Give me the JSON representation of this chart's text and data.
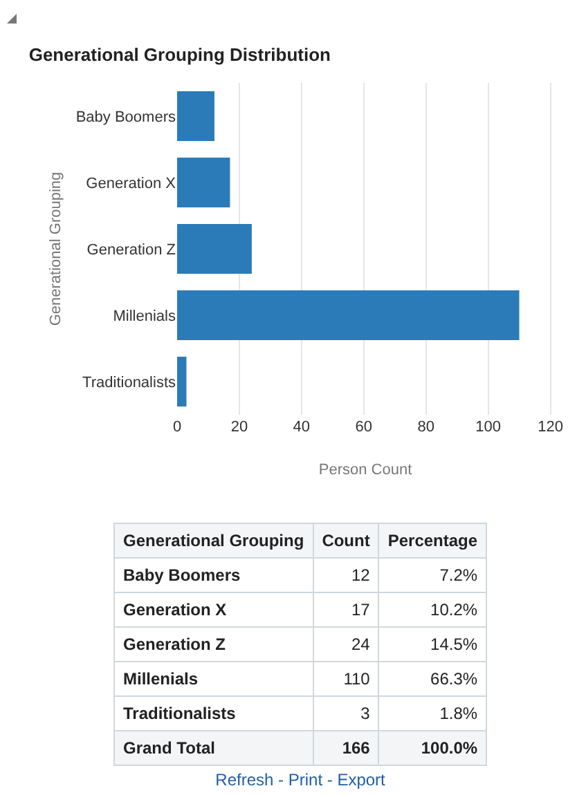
{
  "chart_data": [
    {
      "type": "bar",
      "orientation": "horizontal",
      "title": "Generational Grouping Distribution",
      "xlabel": "Person Count",
      "ylabel": "Generational Grouping",
      "categories": [
        "Baby Boomers",
        "Generation X",
        "Generation Z",
        "Millenials",
        "Traditionalists"
      ],
      "values": [
        12,
        17,
        24,
        110,
        3
      ],
      "color": "#2b7bb9",
      "xlim": [
        0,
        121
      ],
      "xticks": [
        0,
        20,
        40,
        60,
        80,
        100,
        120
      ],
      "grid": "x",
      "legend": false
    },
    {
      "type": "other",
      "legend_title": "Generational Grouping",
      "categories": [
        "Baby Boomers",
        "Generation X",
        "Generation Z",
        "Millenials",
        "Traditionalists"
      ],
      "series": [
        {
          "name": "Count",
          "values": [
            12,
            17,
            24,
            110,
            3
          ]
        },
        {
          "name": "Percentage",
          "values": [
            7.2,
            10.2,
            14.5,
            66.3,
            1.8
          ],
          "value_labels": [
            "7.2%",
            "10.2%",
            "14.5%",
            "66.3%",
            "1.8%"
          ]
        }
      ],
      "totals": [
        "Grand Total",
        "166",
        "100.0%"
      ],
      "data_labels": true,
      "annotations": [
        "Refresh - Print - Export"
      ]
    }
  ]
}
